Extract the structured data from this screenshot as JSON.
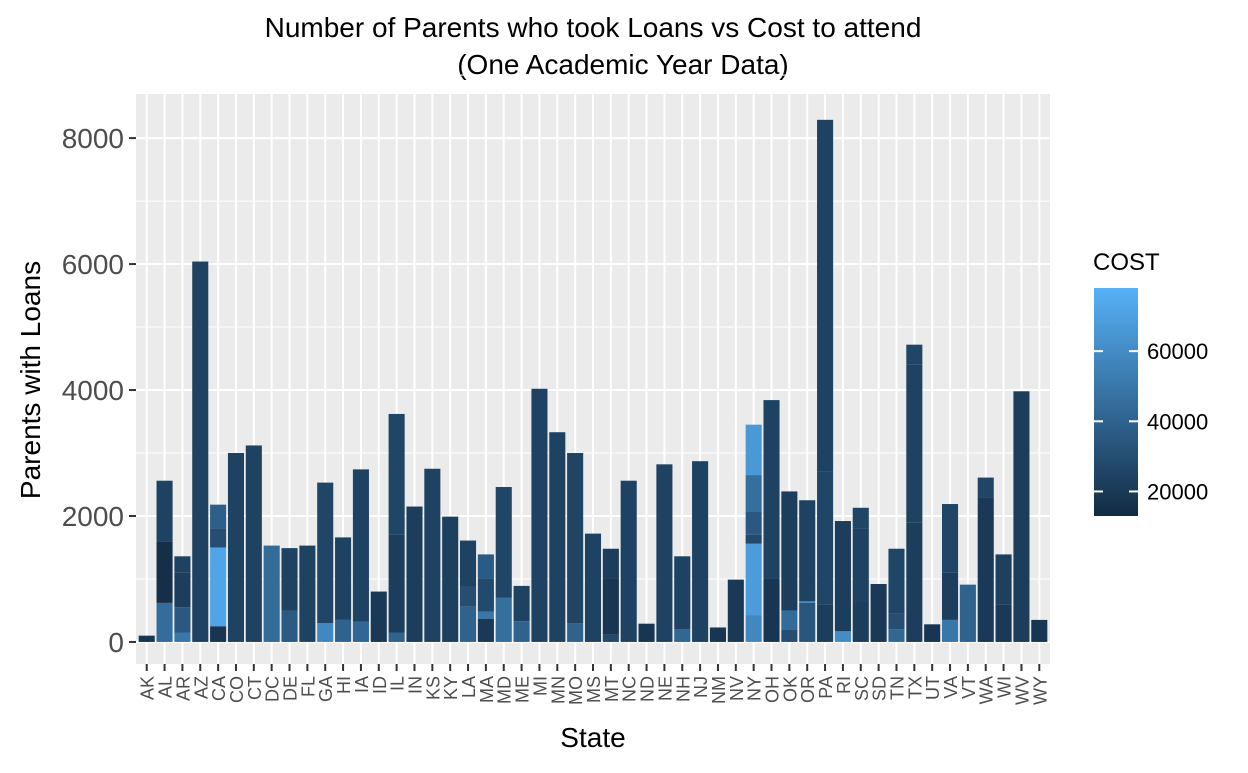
{
  "chart_data": {
    "type": "bar",
    "title": "Number of Parents who took Loans vs Cost to attend",
    "subtitle": "(One Academic Year Data)",
    "xlabel": "State",
    "ylabel": "Parents with Loans",
    "ylim": [
      -350,
      8700
    ],
    "yticks": [
      0,
      2000,
      4000,
      6000,
      8000
    ],
    "grid": true,
    "legend": {
      "title": "COST",
      "position": "right",
      "ticks": [
        20000,
        40000,
        60000
      ],
      "range": [
        13000,
        78000
      ],
      "color_low": "#132B43",
      "color_high": "#56B1F7"
    },
    "categories": [
      "AK",
      "AL",
      "AR",
      "AZ",
      "CA",
      "CO",
      "CT",
      "DC",
      "DE",
      "FL",
      "GA",
      "HI",
      "IA",
      "ID",
      "IL",
      "IN",
      "KS",
      "KY",
      "LA",
      "MA",
      "MD",
      "ME",
      "MI",
      "MN",
      "MO",
      "MS",
      "MT",
      "NC",
      "ND",
      "NE",
      "NH",
      "NJ",
      "NM",
      "NV",
      "NY",
      "OH",
      "OK",
      "OR",
      "PA",
      "RI",
      "SC",
      "SD",
      "TN",
      "TX",
      "UT",
      "VA",
      "VT",
      "WA",
      "WI",
      "WV",
      "WY"
    ],
    "values": [
      100,
      2560,
      1360,
      6040,
      2180,
      3000,
      3120,
      1530,
      1490,
      1530,
      2530,
      1660,
      2740,
      800,
      3620,
      2150,
      2750,
      1990,
      1610,
      1390,
      2460,
      890,
      4020,
      3330,
      3000,
      1720,
      1480,
      2560,
      290,
      2820,
      1360,
      2870,
      230,
      990,
      3450,
      3840,
      2390,
      2250,
      8290,
      1920,
      2130,
      920,
      1480,
      4720,
      280,
      2190,
      910,
      2610,
      1390,
      3980,
      350
    ],
    "segments": [
      {
        "state": "AK",
        "segs": [
          [
            0,
            100,
            18000
          ]
        ]
      },
      {
        "state": "AL",
        "segs": [
          [
            0,
            620,
            45000
          ],
          [
            620,
            1600,
            15000
          ],
          [
            1600,
            2560,
            24000
          ]
        ]
      },
      {
        "state": "AR",
        "segs": [
          [
            0,
            150,
            50000
          ],
          [
            150,
            550,
            35000
          ],
          [
            550,
            1100,
            22000
          ],
          [
            1100,
            1360,
            24000
          ]
        ]
      },
      {
        "state": "AZ",
        "segs": [
          [
            0,
            6040,
            24000
          ]
        ]
      },
      {
        "state": "CA",
        "segs": [
          [
            0,
            250,
            18000
          ],
          [
            250,
            1500,
            72000
          ],
          [
            1500,
            1800,
            30000
          ],
          [
            1800,
            2180,
            38000
          ]
        ]
      },
      {
        "state": "CO",
        "segs": [
          [
            0,
            3000,
            24000
          ]
        ]
      },
      {
        "state": "CT",
        "segs": [
          [
            0,
            3120,
            24000
          ]
        ]
      },
      {
        "state": "DC",
        "segs": [
          [
            0,
            1530,
            44000
          ]
        ]
      },
      {
        "state": "DE",
        "segs": [
          [
            0,
            500,
            36000
          ],
          [
            500,
            1490,
            24000
          ]
        ]
      },
      {
        "state": "FL",
        "segs": [
          [
            0,
            1530,
            24000
          ]
        ]
      },
      {
        "state": "GA",
        "segs": [
          [
            0,
            300,
            58000
          ],
          [
            300,
            2530,
            26000
          ]
        ]
      },
      {
        "state": "HI",
        "segs": [
          [
            0,
            350,
            40000
          ],
          [
            350,
            1660,
            24000
          ]
        ]
      },
      {
        "state": "IA",
        "segs": [
          [
            0,
            320,
            42000
          ],
          [
            320,
            2740,
            24000
          ]
        ]
      },
      {
        "state": "ID",
        "segs": [
          [
            0,
            800,
            20000
          ]
        ]
      },
      {
        "state": "IL",
        "segs": [
          [
            0,
            150,
            40000
          ],
          [
            150,
            1700,
            22000
          ],
          [
            1700,
            3620,
            26000
          ]
        ]
      },
      {
        "state": "IN",
        "segs": [
          [
            0,
            2150,
            22000
          ]
        ]
      },
      {
        "state": "KS",
        "segs": [
          [
            0,
            2750,
            24000
          ]
        ]
      },
      {
        "state": "KY",
        "segs": [
          [
            0,
            1990,
            23000
          ]
        ]
      },
      {
        "state": "LA",
        "segs": [
          [
            0,
            560,
            40000
          ],
          [
            560,
            880,
            30000
          ],
          [
            880,
            1610,
            24000
          ]
        ]
      },
      {
        "state": "MA",
        "segs": [
          [
            0,
            370,
            20000
          ],
          [
            370,
            480,
            50000
          ],
          [
            480,
            1000,
            28000
          ],
          [
            1000,
            1390,
            36000
          ]
        ]
      },
      {
        "state": "MD",
        "segs": [
          [
            0,
            700,
            46000
          ],
          [
            700,
            2460,
            26000
          ]
        ]
      },
      {
        "state": "ME",
        "segs": [
          [
            0,
            330,
            40000
          ],
          [
            330,
            890,
            24000
          ]
        ]
      },
      {
        "state": "MI",
        "segs": [
          [
            0,
            4020,
            24000
          ]
        ]
      },
      {
        "state": "MN",
        "segs": [
          [
            0,
            3330,
            24000
          ]
        ]
      },
      {
        "state": "MO",
        "segs": [
          [
            0,
            300,
            40000
          ],
          [
            300,
            3000,
            25000
          ]
        ]
      },
      {
        "state": "MS",
        "segs": [
          [
            0,
            1720,
            24000
          ]
        ]
      },
      {
        "state": "MT",
        "segs": [
          [
            0,
            120,
            28000
          ],
          [
            120,
            1000,
            18000
          ],
          [
            1000,
            1480,
            22000
          ]
        ]
      },
      {
        "state": "NC",
        "segs": [
          [
            0,
            2560,
            24000
          ]
        ]
      },
      {
        "state": "ND",
        "segs": [
          [
            0,
            290,
            18000
          ]
        ]
      },
      {
        "state": "NE",
        "segs": [
          [
            0,
            2820,
            24000
          ]
        ]
      },
      {
        "state": "NH",
        "segs": [
          [
            0,
            200,
            42000
          ],
          [
            200,
            1360,
            24000
          ]
        ]
      },
      {
        "state": "NJ",
        "segs": [
          [
            0,
            2870,
            24000
          ]
        ]
      },
      {
        "state": "NM",
        "segs": [
          [
            0,
            230,
            18000
          ]
        ]
      },
      {
        "state": "NV",
        "segs": [
          [
            0,
            990,
            20000
          ]
        ]
      },
      {
        "state": "NY",
        "segs": [
          [
            0,
            420,
            58000
          ],
          [
            420,
            1560,
            68000
          ],
          [
            1560,
            1700,
            28000
          ],
          [
            1700,
            2070,
            35000
          ],
          [
            2070,
            2650,
            46000
          ],
          [
            2650,
            3450,
            66000
          ]
        ]
      },
      {
        "state": "OH",
        "segs": [
          [
            0,
            1000,
            18000
          ],
          [
            1000,
            3840,
            24000
          ]
        ]
      },
      {
        "state": "OK",
        "segs": [
          [
            0,
            200,
            30000
          ],
          [
            200,
            500,
            44000
          ],
          [
            500,
            2390,
            22000
          ]
        ]
      },
      {
        "state": "OR",
        "segs": [
          [
            0,
            620,
            34000
          ],
          [
            620,
            650,
            55000
          ],
          [
            650,
            2250,
            24000
          ]
        ]
      },
      {
        "state": "PA",
        "segs": [
          [
            0,
            600,
            22000
          ],
          [
            600,
            2700,
            26000
          ],
          [
            2700,
            8290,
            24000
          ]
        ]
      },
      {
        "state": "RI",
        "segs": [
          [
            0,
            170,
            60000
          ],
          [
            170,
            1920,
            22000
          ]
        ]
      },
      {
        "state": "SC",
        "segs": [
          [
            0,
            650,
            22000
          ],
          [
            650,
            1800,
            24000
          ],
          [
            1800,
            2130,
            26000
          ]
        ]
      },
      {
        "state": "SD",
        "segs": [
          [
            0,
            920,
            20000
          ]
        ]
      },
      {
        "state": "TN",
        "segs": [
          [
            0,
            200,
            42000
          ],
          [
            200,
            450,
            30000
          ],
          [
            450,
            1480,
            26000
          ]
        ]
      },
      {
        "state": "TX",
        "segs": [
          [
            0,
            1900,
            22000
          ],
          [
            1900,
            4400,
            24000
          ],
          [
            4400,
            4720,
            26000
          ]
        ]
      },
      {
        "state": "UT",
        "segs": [
          [
            0,
            280,
            18000
          ]
        ]
      },
      {
        "state": "VA",
        "segs": [
          [
            0,
            350,
            50000
          ],
          [
            350,
            1100,
            22000
          ],
          [
            1100,
            2190,
            26000
          ]
        ]
      },
      {
        "state": "VT",
        "segs": [
          [
            0,
            910,
            40000
          ]
        ]
      },
      {
        "state": "WA",
        "segs": [
          [
            0,
            2300,
            20000
          ],
          [
            2300,
            2610,
            26000
          ]
        ]
      },
      {
        "state": "WI",
        "segs": [
          [
            0,
            600,
            20000
          ],
          [
            600,
            1390,
            23000
          ]
        ]
      },
      {
        "state": "WV",
        "segs": [
          [
            0,
            3980,
            22000
          ]
        ]
      },
      {
        "state": "WY",
        "segs": [
          [
            0,
            350,
            18000
          ]
        ]
      }
    ]
  }
}
